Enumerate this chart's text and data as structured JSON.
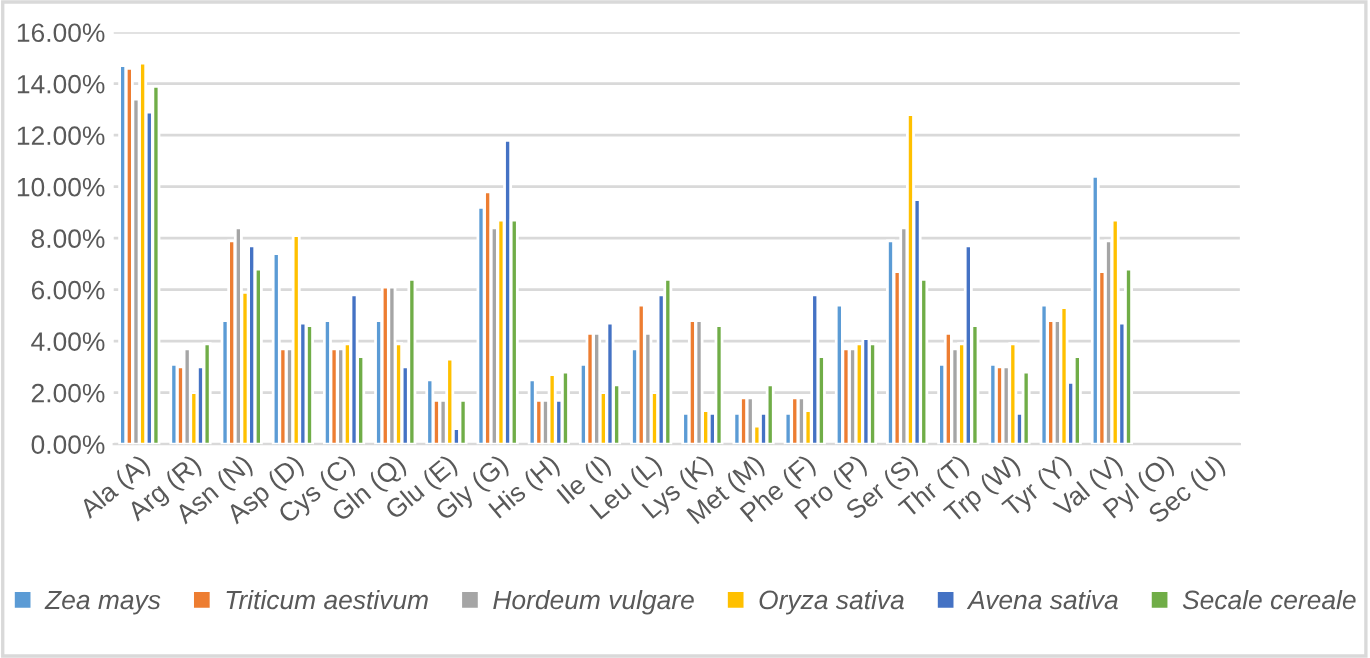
{
  "chart_data": {
    "type": "bar",
    "categories": [
      "Ala (A)",
      "Arg (R)",
      "Asn (N)",
      "Asp (D)",
      "Cys (C)",
      "Gln (Q)",
      "Glu (E)",
      "Gly (G)",
      "His (H)",
      "Ile (I)",
      "Leu (L)",
      "Lys (K)",
      "Met (M)",
      "Phe (F)",
      "Pro (P)",
      "Ser (S)",
      "Thr (T)",
      "Trp (W)",
      "Tyr (Y)",
      "Val (V)",
      "Pyl (O)",
      "Sec (U)"
    ],
    "series": [
      {
        "name": "Zea mays",
        "color": "#5b9bd5",
        "values": [
          14.7,
          3.1,
          4.8,
          7.4,
          4.8,
          4.8,
          2.5,
          9.2,
          2.5,
          3.1,
          3.7,
          1.2,
          1.2,
          1.2,
          5.4,
          7.9,
          3.1,
          3.1,
          5.4,
          10.4,
          null,
          null
        ]
      },
      {
        "name": "Triticum aestivum",
        "color": "#ed7d31",
        "values": [
          14.6,
          3.0,
          7.9,
          3.7,
          3.7,
          6.1,
          1.7,
          9.8,
          1.7,
          4.3,
          5.4,
          4.8,
          1.8,
          1.8,
          3.7,
          6.7,
          4.3,
          3.0,
          4.8,
          6.7,
          null,
          null
        ]
      },
      {
        "name": "Hordeum vulgare",
        "color": "#a5a5a5",
        "values": [
          13.4,
          3.7,
          8.4,
          3.7,
          3.7,
          6.1,
          1.7,
          8.4,
          1.7,
          4.3,
          4.3,
          4.8,
          1.8,
          1.8,
          3.7,
          8.4,
          3.7,
          3.0,
          4.8,
          7.9,
          null,
          null
        ]
      },
      {
        "name": "Oryza sativa",
        "color": "#ffc000",
        "values": [
          14.8,
          2.0,
          5.9,
          8.1,
          3.9,
          3.9,
          3.3,
          8.7,
          2.7,
          2.0,
          2.0,
          1.3,
          0.7,
          1.3,
          3.9,
          12.8,
          3.9,
          3.9,
          5.3,
          8.7,
          null,
          null
        ]
      },
      {
        "name": "Avena sativa",
        "color": "#4472c4",
        "values": [
          12.9,
          3.0,
          7.7,
          4.7,
          5.8,
          3.0,
          0.6,
          11.8,
          1.7,
          4.7,
          5.8,
          1.2,
          1.2,
          5.8,
          4.1,
          9.5,
          7.7,
          1.2,
          2.4,
          4.7,
          null,
          null
        ]
      },
      {
        "name": "Secale cereale",
        "color": "#70ad47",
        "values": [
          13.9,
          3.9,
          6.8,
          4.6,
          3.4,
          6.4,
          1.7,
          8.7,
          2.8,
          2.3,
          6.4,
          4.6,
          2.3,
          3.4,
          3.9,
          6.4,
          4.6,
          2.8,
          3.4,
          6.8,
          null,
          null
        ]
      }
    ],
    "ylim": [
      0,
      16
    ],
    "yticks": [
      {
        "value": 0,
        "label": "0.00%"
      },
      {
        "value": 2,
        "label": "2.00%"
      },
      {
        "value": 4,
        "label": "4.00%"
      },
      {
        "value": 6,
        "label": "6.00%"
      },
      {
        "value": 8,
        "label": "8.00%"
      },
      {
        "value": 10,
        "label": "10.00%"
      },
      {
        "value": 12,
        "label": "12.00%"
      },
      {
        "value": 14,
        "label": "14.00%"
      },
      {
        "value": 16,
        "label": "16.00%"
      }
    ],
    "grid": "y",
    "legend": "bottom"
  }
}
